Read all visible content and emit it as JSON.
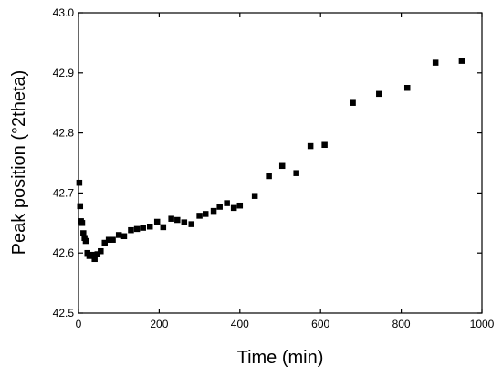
{
  "chart_data": {
    "type": "scatter",
    "title": "",
    "xlabel": "Time (min)",
    "ylabel": "Peak position (°2theta)",
    "xlim": [
      0,
      1000
    ],
    "ylim": [
      42.5,
      43.0
    ],
    "x_ticks": [
      0,
      200,
      400,
      600,
      800,
      1000
    ],
    "x_tick_labels": [
      "0",
      "200",
      "400",
      "600",
      "800",
      "1000"
    ],
    "y_ticks": [
      42.5,
      42.6,
      42.7,
      42.8,
      42.9,
      43.0
    ],
    "y_tick_labels": [
      "42.5",
      "42.6",
      "42.7",
      "42.8",
      "42.9",
      "43.0"
    ],
    "grid": false,
    "legend": "none",
    "marker": "filled-square",
    "marker_color": "#000000",
    "series": [
      {
        "x": [
          2,
          4,
          6,
          9,
          12,
          15,
          18,
          22,
          27,
          33,
          40,
          47,
          55,
          65,
          75,
          85,
          100,
          113,
          130,
          145,
          160,
          177,
          195,
          210,
          230,
          245,
          262,
          280,
          300,
          315,
          335,
          350,
          368,
          385,
          400,
          437,
          472,
          505,
          540,
          575,
          610,
          680,
          745,
          815,
          885,
          950
        ],
        "y": [
          42.717,
          42.678,
          42.653,
          42.65,
          42.633,
          42.625,
          42.62,
          42.6,
          42.595,
          42.597,
          42.59,
          42.598,
          42.603,
          42.617,
          42.622,
          42.622,
          42.63,
          42.628,
          42.638,
          42.64,
          42.642,
          42.644,
          42.652,
          42.643,
          42.657,
          42.655,
          42.651,
          42.648,
          42.662,
          42.665,
          42.67,
          42.677,
          42.683,
          42.675,
          42.679,
          42.695,
          42.728,
          42.745,
          42.733,
          42.778,
          42.78,
          42.85,
          42.865,
          42.875,
          42.917,
          42.92
        ]
      }
    ]
  }
}
